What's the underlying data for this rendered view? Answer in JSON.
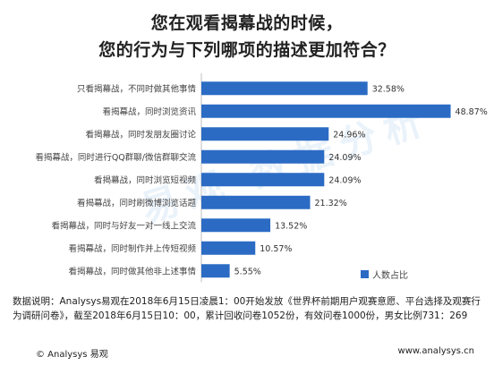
{
  "title_line1": "您在观看揭幕战的时候，",
  "title_line2": "您的行为与下列哪项的描述更加符合？",
  "watermark": "易观 数据分析",
  "legend_label": "人数占比",
  "note": "数据说明：Analysys易观在2018年6月15日凌晨1：00开始发放《世界杯前期用户观赛意愿、平台选择及观赛行为调研问卷》，截至2018年6月15日10：00，累计回收问卷1052份，有效问卷1000份，男女比例731：269",
  "footer_left": "© Analysys 易观",
  "footer_right": "www.analysys.cn",
  "colors": {
    "bar": "#2b6bc4",
    "axis": "#bfbfbf"
  },
  "chart_data": {
    "type": "bar",
    "orientation": "horizontal",
    "categories": [
      "只看揭幕战，不同时做其他事情",
      "看揭幕战，同时浏览资讯",
      "看揭幕战，同时发朋友圈讨论",
      "看揭幕战，同时进行QQ群聊/微信群聊交流",
      "看揭幕战，同时浏览短视频",
      "看揭幕战，同时刷微博浏览话题",
      "看揭幕战，同时与好友一对一线上交流",
      "看揭幕战，同时制作并上传短视频",
      "看揭幕战，同时做其他非上述事情"
    ],
    "values": [
      32.58,
      48.87,
      24.96,
      24.09,
      24.09,
      21.32,
      13.52,
      10.57,
      5.55
    ],
    "value_labels": [
      "32.58%",
      "48.87%",
      "24.96%",
      "24.09%",
      "24.09%",
      "21.32%",
      "13.52%",
      "10.57%",
      "5.55%"
    ],
    "series": [
      {
        "name": "人数占比",
        "values": [
          32.58,
          48.87,
          24.96,
          24.09,
          24.09,
          21.32,
          13.52,
          10.57,
          5.55
        ]
      }
    ],
    "xlim": [
      0,
      50
    ],
    "legend_position": "bottom-right",
    "grid": false
  }
}
